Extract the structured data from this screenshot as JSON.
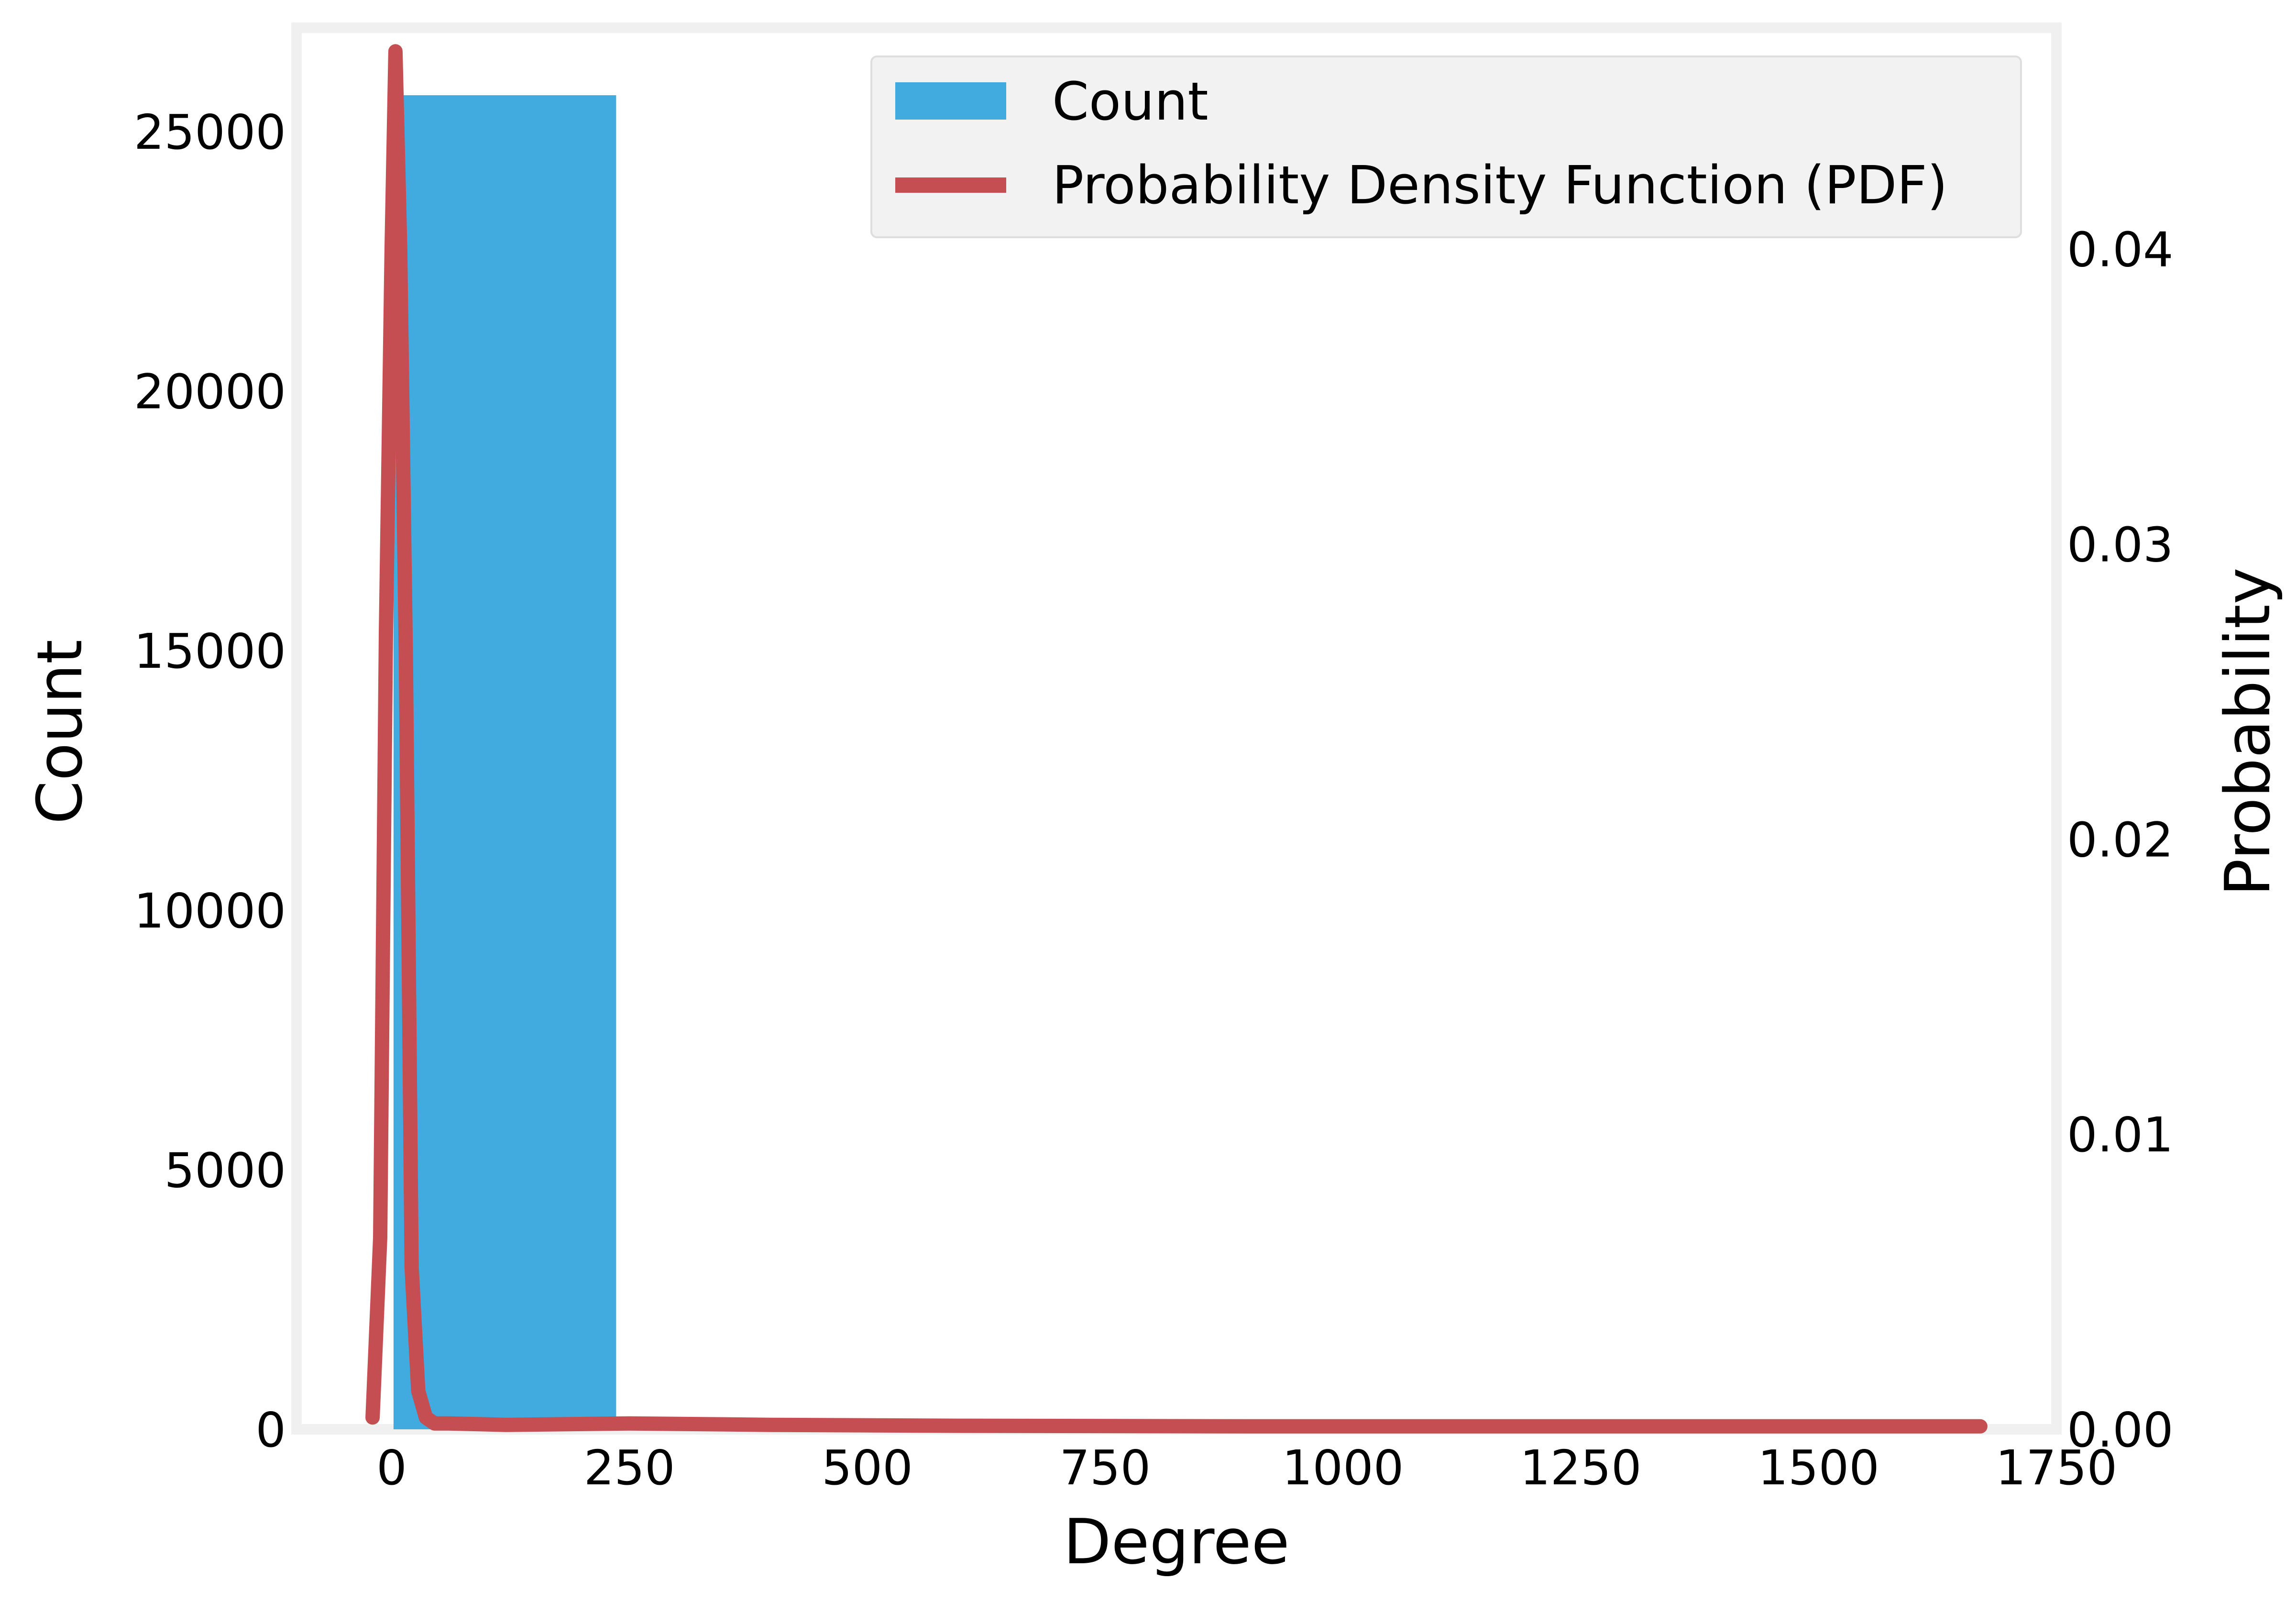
{
  "chart_data": {
    "type": "bar",
    "xlabel": "Degree",
    "ylabel": "Count",
    "y2label": "Probability",
    "xlim": [
      -100,
      1750
    ],
    "ylim": [
      0,
      27000
    ],
    "y2lim": [
      0,
      0.0475
    ],
    "x_ticks": [
      0,
      250,
      500,
      750,
      1000,
      1250,
      1500,
      1750
    ],
    "y_ticks": [
      0,
      5000,
      10000,
      15000,
      20000,
      25000
    ],
    "y2_ticks": [
      0.0,
      0.01,
      0.02,
      0.03,
      0.04
    ],
    "y2_tick_labels": [
      "0.00",
      "0.01",
      "0.02",
      "0.03",
      "0.04"
    ],
    "grid": false,
    "legend_position": "top-right",
    "series": [
      {
        "name": "Count",
        "type": "bar",
        "color": "#41abe0",
        "bins": [
          {
            "x0": 2,
            "x1": 236,
            "value": 25700
          }
        ]
      },
      {
        "name": "Probability Density Function (PDF)",
        "type": "line",
        "axis": "y2",
        "color": "#c44e52",
        "points": [
          [
            -20,
            0.0004
          ],
          [
            -12,
            0.0065
          ],
          [
            -6,
            0.027
          ],
          [
            0,
            0.04
          ],
          [
            4,
            0.0467
          ],
          [
            9,
            0.04
          ],
          [
            15,
            0.026
          ],
          [
            21,
            0.0055
          ],
          [
            28,
            0.0013
          ],
          [
            36,
            0.0004
          ],
          [
            45,
            0.0002
          ],
          [
            60,
            0.0002
          ],
          [
            120,
            0.00015
          ],
          [
            250,
            0.0002
          ],
          [
            400,
            0.00015
          ],
          [
            600,
            0.00012
          ],
          [
            900,
            0.0001
          ],
          [
            1200,
            0.0001
          ],
          [
            1500,
            0.0001
          ],
          [
            1670,
            0.0001
          ]
        ]
      }
    ]
  }
}
